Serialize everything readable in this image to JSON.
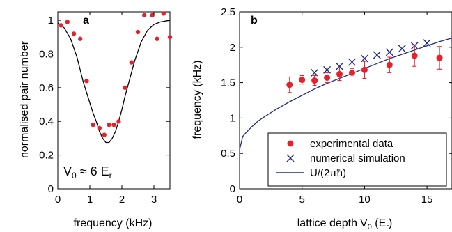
{
  "colors": {
    "experimental": "#e8202a",
    "fit": "#000000",
    "simulation": "#1f2a8c",
    "analytic": "#1f2a8c",
    "axes": "#000000"
  },
  "chart_data": [
    {
      "type": "scatter",
      "panel_label": "a",
      "xlabel": "frequency (kHz)",
      "ylabel": "normalised pair number",
      "annotation": "V₀ ≈ 6 Eᵣ",
      "annotation_parts": {
        "v": "V",
        "sub0": "0",
        "approx": " ≈ 6 E",
        "subr": "r"
      },
      "xlim": [
        0,
        3.5
      ],
      "ylim": [
        0,
        1.05
      ],
      "xticks": [
        0,
        1,
        2,
        3
      ],
      "xtick_labels": [
        "0",
        "1",
        "2",
        "3"
      ],
      "yticks": [
        0,
        0.2,
        0.4,
        0.6,
        0.8,
        1
      ],
      "ytick_labels": [
        "0",
        "0.2",
        "0.4",
        "0.6",
        "0.8",
        "1"
      ],
      "series": [
        {
          "kind": "points",
          "x": [
            0.1,
            0.3,
            0.5,
            0.7,
            0.9,
            1.1,
            1.3,
            1.45,
            1.6,
            1.75,
            1.9,
            2.1,
            2.3,
            2.5,
            2.7,
            2.95,
            3.1,
            3.3,
            3.5
          ],
          "y": [
            0.97,
            0.99,
            0.92,
            0.89,
            0.64,
            0.38,
            0.36,
            0.32,
            0.38,
            0.38,
            0.4,
            0.6,
            0.75,
            0.93,
            1.03,
            1.03,
            0.89,
            1.04,
            0.9
          ]
        },
        {
          "kind": "curve",
          "x": [
            0,
            0.2,
            0.4,
            0.6,
            0.8,
            1.0,
            1.1,
            1.2,
            1.3,
            1.4,
            1.5,
            1.6,
            1.7,
            1.8,
            1.9,
            2.0,
            2.1,
            2.2,
            2.4,
            2.6,
            2.8,
            3.0,
            3.2,
            3.5
          ],
          "y": [
            0.985,
            0.955,
            0.89,
            0.78,
            0.63,
            0.51,
            0.45,
            0.4,
            0.34,
            0.3,
            0.275,
            0.275,
            0.3,
            0.34,
            0.4,
            0.47,
            0.55,
            0.62,
            0.76,
            0.87,
            0.94,
            0.975,
            0.99,
            1.0
          ]
        }
      ]
    },
    {
      "type": "scatter",
      "panel_label": "b",
      "xlabel": "lattice depth V₀ (Eᵣ)",
      "xlabel_parts": {
        "main": "lattice depth",
        "v": "V",
        "sub0": "0",
        "paren_open": " (E",
        "subr": "r",
        "paren_close": ")"
      },
      "ylabel": "frequency (kHz)",
      "xlim": [
        0,
        17
      ],
      "ylim": [
        0,
        2.5
      ],
      "xticks": [
        0,
        5,
        10,
        15
      ],
      "xtick_labels": [
        "0",
        "5",
        "10",
        "15"
      ],
      "yticks": [
        0,
        0.5,
        1,
        1.5,
        2,
        2.5
      ],
      "ytick_labels": [
        "0",
        "0.5",
        "1",
        "1.5",
        "2",
        "2.5"
      ],
      "legend_position": "bottom-right",
      "series": [
        {
          "name": "experimental data",
          "kind": "points_errorbars",
          "x": [
            4,
            5,
            6,
            7,
            8,
            9,
            10,
            12,
            14,
            16
          ],
          "y": [
            1.47,
            1.54,
            1.53,
            1.57,
            1.62,
            1.64,
            1.68,
            1.75,
            1.88,
            1.85
          ],
          "err": [
            0.11,
            0.06,
            0.07,
            0.07,
            0.09,
            0.06,
            0.12,
            0.11,
            0.15,
            0.16
          ]
        },
        {
          "name": "numerical simulation",
          "kind": "crosses",
          "x": [
            6,
            7,
            8,
            9,
            10,
            11,
            12,
            13,
            14,
            15
          ],
          "y": [
            1.64,
            1.68,
            1.73,
            1.79,
            1.84,
            1.89,
            1.93,
            1.98,
            2.02,
            2.06
          ]
        },
        {
          "name": "U/(2πħ)",
          "kind": "curve",
          "x": [
            0.01,
            0.25,
            0.5,
            1,
            1.5,
            2,
            3,
            4,
            5,
            6,
            7,
            8,
            9,
            10,
            11,
            12,
            13,
            14,
            15,
            16,
            17
          ],
          "y": [
            0.56,
            0.74,
            0.79,
            0.88,
            0.96,
            1.02,
            1.13,
            1.23,
            1.32,
            1.41,
            1.49,
            1.56,
            1.63,
            1.7,
            1.77,
            1.84,
            1.9,
            1.96,
            2.02,
            2.08,
            2.13
          ]
        }
      ]
    }
  ]
}
